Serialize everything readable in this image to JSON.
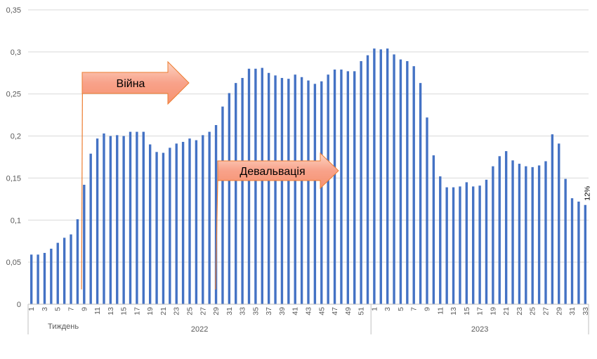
{
  "chart_data": {
    "type": "bar",
    "xlabel": "Тиждень",
    "ylabel": "",
    "ylim": [
      0,
      0.35
    ],
    "yticks": [
      0,
      0.05,
      0.1,
      0.15,
      0.2,
      0.25,
      0.3,
      0.35
    ],
    "ytick_labels": [
      "0",
      "0,05",
      "0,1",
      "0,15",
      "0,2",
      "0,25",
      "0,3",
      "0,35"
    ],
    "grid": true,
    "bar_color": "#4472C4",
    "groups": [
      {
        "label": "2022",
        "weeks": [
          1,
          2,
          3,
          4,
          5,
          6,
          7,
          8,
          9,
          10,
          11,
          12,
          13,
          14,
          15,
          16,
          17,
          18,
          19,
          20,
          21,
          22,
          23,
          24,
          25,
          26,
          27,
          28,
          29,
          30,
          31,
          32,
          33,
          34,
          35,
          36,
          37,
          38,
          39,
          40,
          41,
          42,
          43,
          44,
          45,
          46,
          47,
          48,
          49,
          50,
          51,
          52
        ]
      },
      {
        "label": "2023",
        "weeks": [
          1,
          2,
          3,
          4,
          5,
          6,
          7,
          8,
          9,
          10,
          11,
          12,
          13,
          14,
          15,
          16,
          17,
          18,
          19,
          20,
          21,
          22,
          23,
          24,
          25,
          26,
          27,
          28,
          29,
          30,
          31,
          32,
          33
        ]
      }
    ],
    "values": [
      0.059,
      0.059,
      0.061,
      0.066,
      0.073,
      0.079,
      0.083,
      0.101,
      0.142,
      0.179,
      0.197,
      0.203,
      0.2,
      0.201,
      0.2,
      0.205,
      0.205,
      0.205,
      0.19,
      0.181,
      0.18,
      0.186,
      0.191,
      0.193,
      0.197,
      0.195,
      0.201,
      0.205,
      0.213,
      0.235,
      0.251,
      0.263,
      0.269,
      0.28,
      0.28,
      0.281,
      0.275,
      0.272,
      0.269,
      0.268,
      0.273,
      0.27,
      0.266,
      0.262,
      0.265,
      0.273,
      0.279,
      0.279,
      0.277,
      0.277,
      0.289,
      0.296,
      0.304,
      0.303,
      0.304,
      0.297,
      0.291,
      0.289,
      0.283,
      0.263,
      0.222,
      0.177,
      0.152,
      0.139,
      0.139,
      0.14,
      0.145,
      0.14,
      0.141,
      0.148,
      0.164,
      0.176,
      0.182,
      0.171,
      0.167,
      0.164,
      0.163,
      0.165,
      0.17,
      0.202,
      0.191,
      0.149,
      0.126,
      0.122,
      0.118
    ],
    "data_label": {
      "index": 84,
      "text": "12%"
    },
    "annotations": [
      {
        "text": "Війна",
        "at_index": 8,
        "type": "arrow"
      },
      {
        "text": "Девальвація",
        "at_index": 28,
        "type": "arrow"
      }
    ],
    "colors": {
      "arrow_fill_start": "#f8a28a",
      "arrow_fill_end": "#fde3d9",
      "arrow_stroke": "#ed7d31",
      "marker_line": "#ed7d31",
      "grid": "#d9d9d9",
      "axis": "#bfbfbf"
    }
  }
}
